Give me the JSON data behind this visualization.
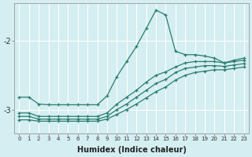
{
  "xlabel": "Humidex (Indice chaleur)",
  "bg_color": "#d4eef1",
  "grid_color": "#ffffff",
  "line_color": "#2a7d6e",
  "x_ticks": [
    0,
    1,
    2,
    3,
    4,
    5,
    6,
    7,
    8,
    9,
    10,
    11,
    12,
    13,
    14,
    15,
    16,
    17,
    18,
    19,
    20,
    21,
    22,
    23
  ],
  "xlim": [
    -0.5,
    23.5
  ],
  "ylim": [
    -3.35,
    -1.45
  ],
  "yticks": [
    -3,
    -2
  ],
  "line1_x": [
    0,
    1,
    2,
    3,
    4,
    5,
    6,
    7,
    8,
    9,
    10,
    11,
    12,
    13,
    14,
    15,
    16,
    17,
    18,
    19,
    20,
    21,
    22,
    23
  ],
  "line1_y": [
    -2.82,
    -2.82,
    -2.92,
    -2.93,
    -2.93,
    -2.93,
    -2.93,
    -2.93,
    -2.93,
    -2.8,
    -2.52,
    -2.3,
    -2.08,
    -1.82,
    -1.55,
    -1.62,
    -2.15,
    -2.2,
    -2.2,
    -2.22,
    -2.25,
    -2.32,
    -2.28,
    -2.25
  ],
  "line2_x": [
    0,
    1,
    2,
    3,
    4,
    5,
    6,
    7,
    8,
    9,
    10,
    11,
    12,
    13,
    14,
    15,
    16,
    17,
    18,
    19,
    20,
    21,
    22,
    23
  ],
  "line2_y": [
    -3.05,
    -3.05,
    -3.1,
    -3.1,
    -3.1,
    -3.1,
    -3.1,
    -3.1,
    -3.1,
    -3.05,
    -2.92,
    -2.82,
    -2.72,
    -2.6,
    -2.5,
    -2.45,
    -2.38,
    -2.32,
    -2.3,
    -2.3,
    -2.3,
    -2.32,
    -2.3,
    -2.28
  ],
  "line3_x": [
    0,
    1,
    2,
    3,
    4,
    5,
    6,
    7,
    8,
    9,
    10,
    11,
    12,
    13,
    14,
    15,
    16,
    17,
    18,
    19,
    20,
    21,
    22,
    23
  ],
  "line3_y": [
    -3.1,
    -3.1,
    -3.14,
    -3.14,
    -3.14,
    -3.14,
    -3.14,
    -3.14,
    -3.14,
    -3.1,
    -3.0,
    -2.92,
    -2.82,
    -2.72,
    -2.62,
    -2.56,
    -2.46,
    -2.4,
    -2.38,
    -2.36,
    -2.36,
    -2.37,
    -2.35,
    -2.33
  ],
  "line4_x": [
    0,
    1,
    2,
    3,
    4,
    5,
    6,
    7,
    8,
    9,
    10,
    11,
    12,
    13,
    14,
    15,
    16,
    17,
    18,
    19,
    20,
    21,
    22,
    23
  ],
  "line4_y": [
    -3.15,
    -3.15,
    -3.17,
    -3.17,
    -3.17,
    -3.17,
    -3.17,
    -3.17,
    -3.17,
    -3.14,
    -3.07,
    -3.0,
    -2.92,
    -2.83,
    -2.74,
    -2.67,
    -2.57,
    -2.5,
    -2.46,
    -2.44,
    -2.42,
    -2.42,
    -2.4,
    -2.38
  ]
}
